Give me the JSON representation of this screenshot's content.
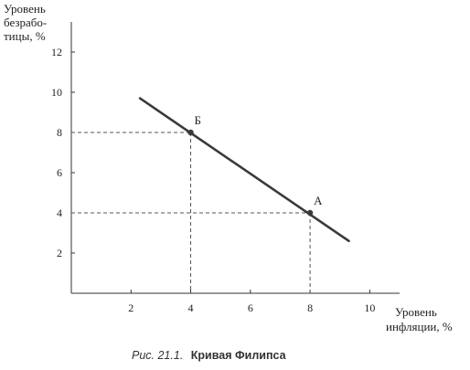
{
  "chart_data": {
    "type": "line",
    "ylabel_lines": [
      "Уровень",
      "безрабо-",
      "тицы, %"
    ],
    "xlabel_lines": [
      "Уровень",
      "инфляции, %"
    ],
    "x_ticks": [
      2,
      4,
      6,
      8,
      10
    ],
    "y_ticks": [
      2,
      4,
      6,
      8,
      10,
      12
    ],
    "xlim": [
      0,
      11
    ],
    "ylim": [
      0,
      13.5
    ],
    "series": [
      {
        "x": [
          2.3,
          9.3
        ],
        "y": [
          9.7,
          2.6
        ]
      }
    ],
    "points": [
      {
        "label": "Б",
        "x": 4,
        "y": 8
      },
      {
        "label": "А",
        "x": 8,
        "y": 4
      }
    ],
    "grid": false,
    "legend": "none"
  },
  "caption": {
    "prefix": "Рис. 21.1.",
    "title": "Кривая Филипса"
  },
  "colors": {
    "line": "#3a3a3a",
    "axis": "#333333",
    "guide": "#555555"
  }
}
